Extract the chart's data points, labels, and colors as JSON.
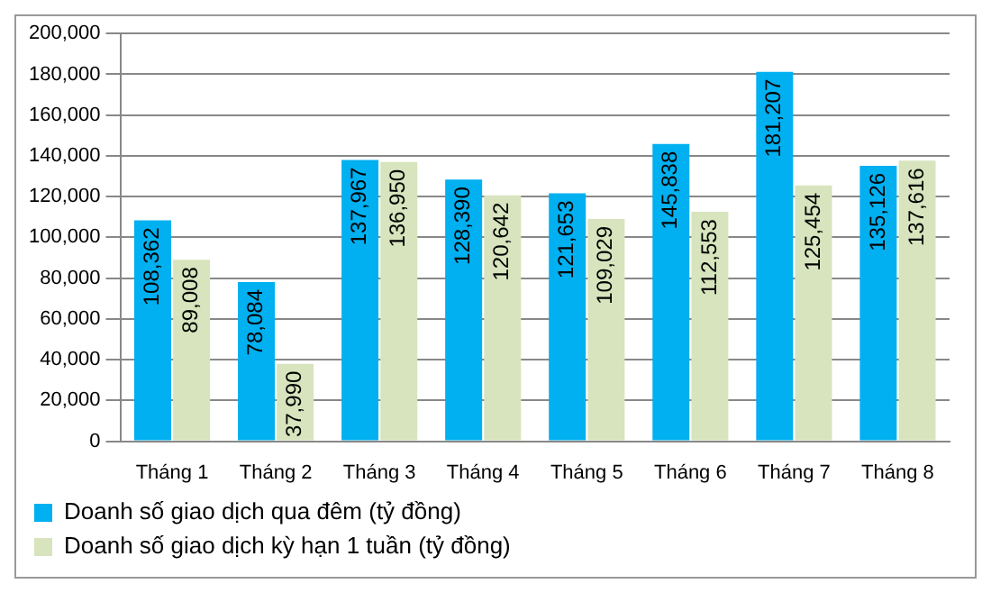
{
  "chart_data": {
    "type": "bar",
    "categories": [
      "Tháng 1",
      "Tháng 2",
      "Tháng 3",
      "Tháng 4",
      "Tháng 5",
      "Tháng 6",
      "Tháng 7",
      "Tháng 8"
    ],
    "series": [
      {
        "name": "Doanh số giao dịch qua đêm (tỷ đồng)",
        "color": "#00b0f0",
        "values": [
          108362,
          78084,
          137967,
          128390,
          121653,
          145838,
          181207,
          135126
        ],
        "value_labels": [
          "108,362",
          "78,084",
          "137,967",
          "128,390",
          "121,653",
          "145,838",
          "181,207",
          "135,126"
        ]
      },
      {
        "name": "Doanh số giao dịch kỳ hạn 1 tuần (tỷ đồng)",
        "color": "#d7e4bd",
        "values": [
          89008,
          37990,
          136950,
          120642,
          109029,
          112553,
          125454,
          137616
        ],
        "value_labels": [
          "89,008",
          "37,990",
          "136,950",
          "120,642",
          "109,029",
          "112,553",
          "125,454",
          "137,616"
        ]
      }
    ],
    "ylim": [
      0,
      200000
    ],
    "yticks": [
      {
        "value": 0,
        "label": "0"
      },
      {
        "value": 20000,
        "label": "20,000"
      },
      {
        "value": 40000,
        "label": "40,000"
      },
      {
        "value": 60000,
        "label": "60,000"
      },
      {
        "value": 80000,
        "label": "80,000"
      },
      {
        "value": 100000,
        "label": "100,000"
      },
      {
        "value": 120000,
        "label": "120,000"
      },
      {
        "value": 140000,
        "label": "140,000"
      },
      {
        "value": 160000,
        "label": "160,000"
      },
      {
        "value": 180000,
        "label": "180,000"
      },
      {
        "value": 200000,
        "label": "200,000"
      }
    ],
    "grid": "y",
    "legend": "bottom"
  }
}
